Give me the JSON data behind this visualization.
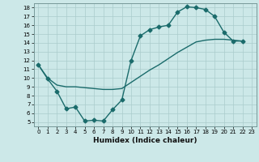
{
  "title": "",
  "xlabel": "Humidex (Indice chaleur)",
  "bg_color": "#cce8e8",
  "line_color": "#1a6b6b",
  "xlim": [
    -0.5,
    23.5
  ],
  "ylim": [
    4.5,
    18.5
  ],
  "xticks": [
    0,
    1,
    2,
    3,
    4,
    5,
    6,
    7,
    8,
    9,
    10,
    11,
    12,
    13,
    14,
    15,
    16,
    17,
    18,
    19,
    20,
    21,
    22,
    23
  ],
  "yticks": [
    5,
    6,
    7,
    8,
    9,
    10,
    11,
    12,
    13,
    14,
    15,
    16,
    17,
    18
  ],
  "curve1_x": [
    0,
    1,
    2,
    3,
    4,
    5,
    6,
    7,
    8,
    9,
    10,
    11,
    12,
    13,
    14,
    15,
    16,
    17,
    18,
    19,
    20,
    21,
    22
  ],
  "curve1_y": [
    11.5,
    9.9,
    8.5,
    6.5,
    6.7,
    5.1,
    5.2,
    5.1,
    6.4,
    7.5,
    12.0,
    14.8,
    15.5,
    15.8,
    16.0,
    17.5,
    18.1,
    18.0,
    17.8,
    17.0,
    15.2,
    14.2,
    14.2
  ],
  "curve2_x": [
    0,
    1,
    2,
    3,
    4,
    5,
    6,
    7,
    8,
    9,
    10,
    11,
    12,
    13,
    14,
    15,
    16,
    17,
    18,
    19,
    20,
    21,
    22
  ],
  "curve2_y": [
    11.5,
    10.0,
    9.2,
    9.0,
    9.0,
    8.9,
    8.8,
    8.7,
    8.7,
    8.8,
    9.5,
    10.2,
    10.9,
    11.5,
    12.2,
    12.9,
    13.5,
    14.1,
    14.3,
    14.4,
    14.4,
    14.3,
    14.2
  ],
  "grid_color": "#aacccc",
  "marker": "D",
  "marker_size": 2.5,
  "linewidth": 1.0
}
